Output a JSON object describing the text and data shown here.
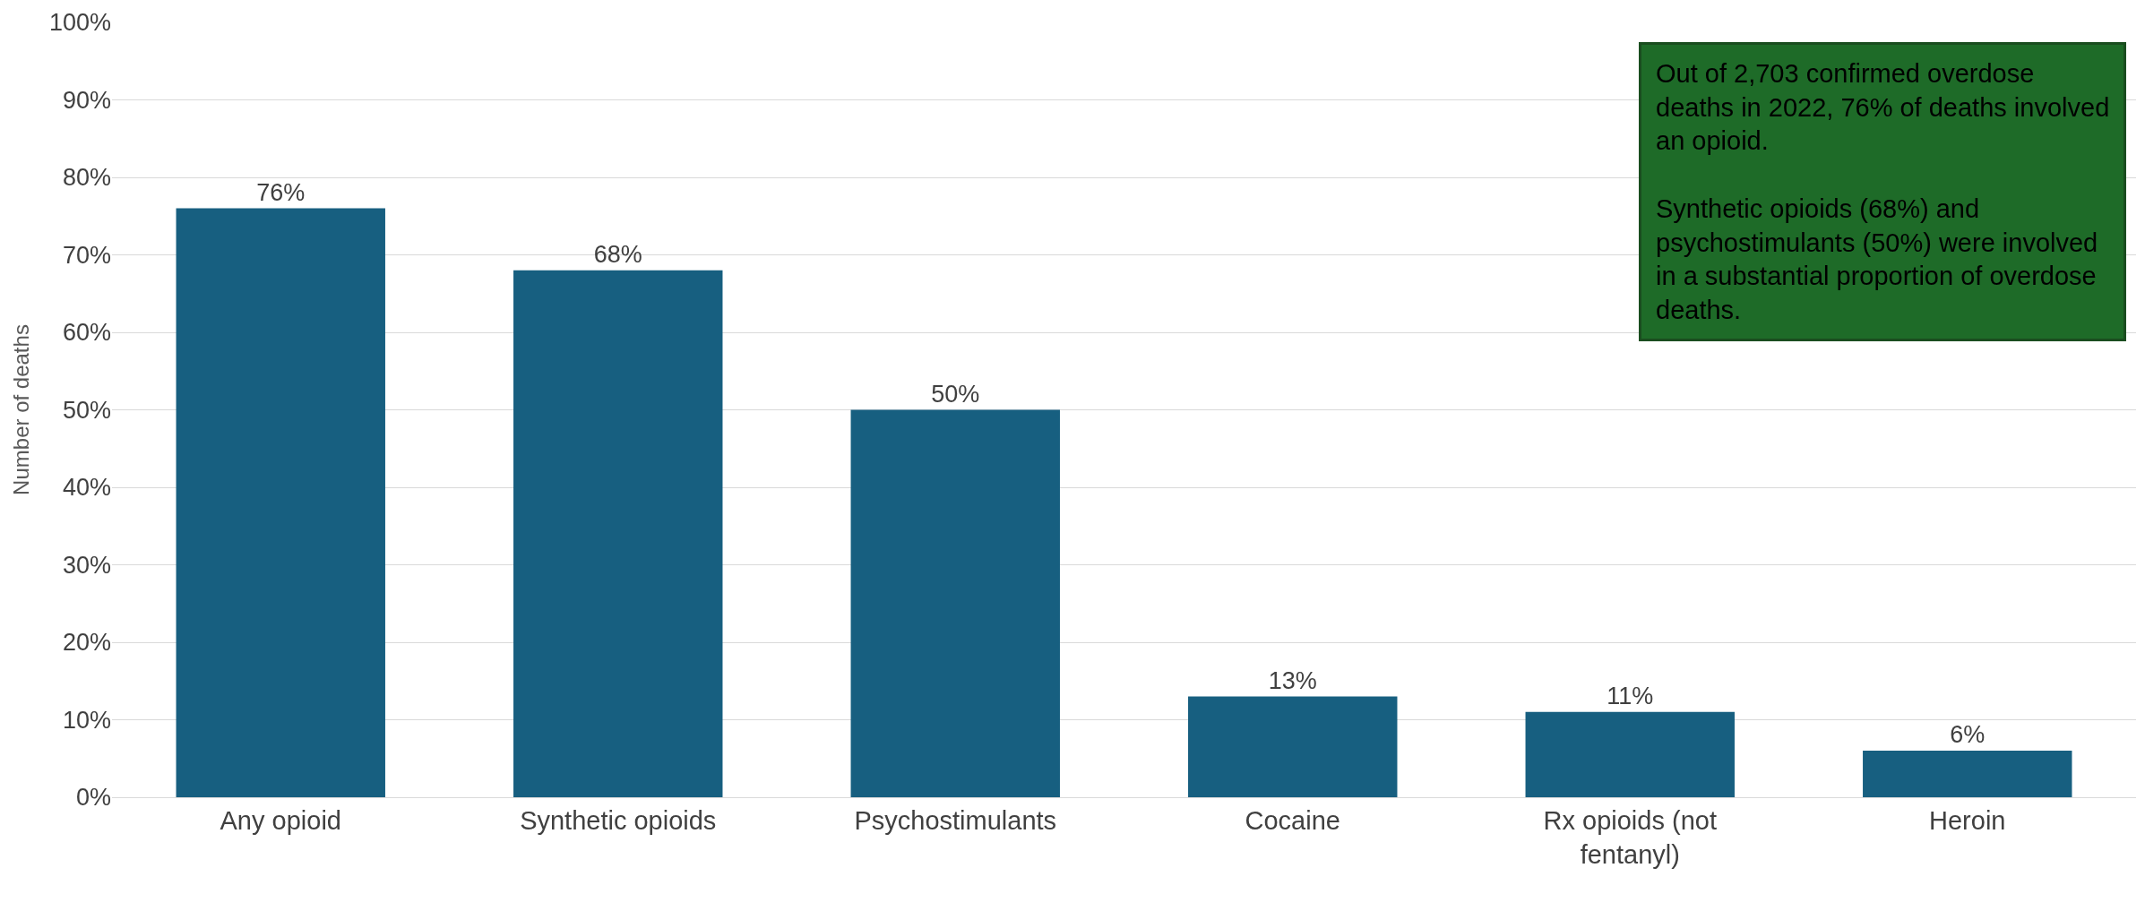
{
  "chart_data": {
    "type": "bar",
    "ylabel": "Number of deaths",
    "categories": [
      "Any opioid",
      "Synthetic opioids",
      "Psychostimulants",
      "Cocaine",
      "Rx opioids (not\nfentanyl)",
      "Heroin"
    ],
    "values": [
      76,
      68,
      50,
      13,
      11,
      6
    ],
    "value_labels": [
      "76%",
      "68%",
      "50%",
      "13%",
      "11%",
      "6%"
    ],
    "color": "#175f80",
    "ylim": [
      0,
      100
    ],
    "yticks": [
      {
        "value": 0,
        "label": "0%"
      },
      {
        "value": 10,
        "label": "10%"
      },
      {
        "value": 20,
        "label": "20%"
      },
      {
        "value": 30,
        "label": "30%"
      },
      {
        "value": 40,
        "label": "40%"
      },
      {
        "value": 50,
        "label": "50%"
      },
      {
        "value": 60,
        "label": "60%"
      },
      {
        "value": 70,
        "label": "70%"
      },
      {
        "value": 80,
        "label": "80%"
      },
      {
        "value": 90,
        "label": "90%"
      },
      {
        "value": 100,
        "label": "100%"
      }
    ],
    "grid": "y",
    "annotations": [
      "Out of 2,703 confirmed overdose\ndeaths in 2022, 76% of deaths involved\nan opioid.\n\nSynthetic opioids (68%) and\npsychostimulants (50%) were involved\nin a substantial proportion of overdose\ndeaths."
    ]
  }
}
